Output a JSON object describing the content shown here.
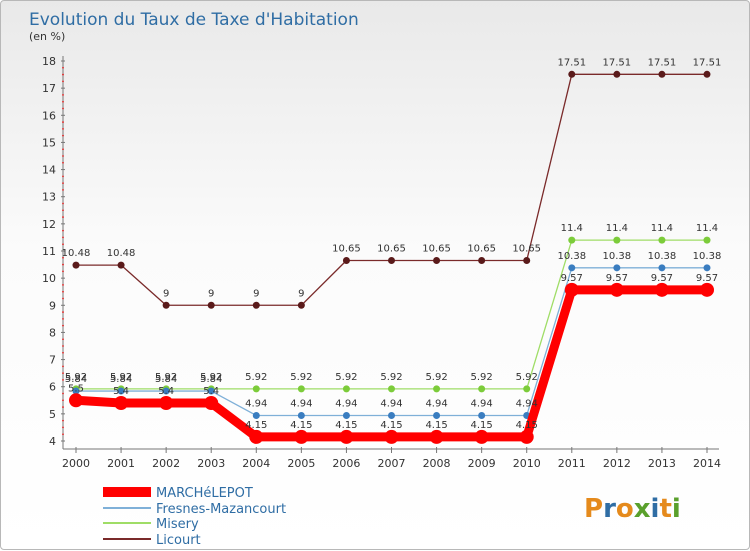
{
  "chart_data": {
    "type": "line",
    "title": "Evolution du Taux de Taxe d'Habitation",
    "subtitle": "(en %)",
    "x": [
      "2000",
      "2001",
      "2002",
      "2003",
      "2004",
      "2005",
      "2006",
      "2007",
      "2008",
      "2009",
      "2010",
      "2011",
      "2012",
      "2013",
      "2014"
    ],
    "ylim": [
      4,
      18
    ],
    "yticks": [
      4,
      5,
      6,
      7,
      8,
      9,
      10,
      11,
      12,
      13,
      14,
      15,
      16,
      17,
      18
    ],
    "grid": false,
    "legend_position": "bottom-left",
    "series": [
      {
        "name": "MARCHéLEPOT",
        "color": "#ff0000",
        "values": [
          5.5,
          5.4,
          5.4,
          5.4,
          4.15,
          4.15,
          4.15,
          4.15,
          4.15,
          4.15,
          4.15,
          9.57,
          9.57,
          9.57,
          9.57
        ]
      },
      {
        "name": "Fresnes-Mazancourt",
        "color": "#5b9bd5",
        "values": [
          5.84,
          5.84,
          5.84,
          5.84,
          4.94,
          4.94,
          4.94,
          4.94,
          4.94,
          4.94,
          4.94,
          10.38,
          10.38,
          10.38,
          10.38
        ]
      },
      {
        "name": "Misery",
        "color": "#99dd55",
        "values": [
          5.92,
          5.92,
          5.92,
          5.92,
          5.92,
          5.92,
          5.92,
          5.92,
          5.92,
          5.92,
          5.92,
          11.4,
          11.4,
          11.4,
          11.4
        ]
      },
      {
        "name": "Licourt",
        "color": "#7a2a2a",
        "values": [
          10.48,
          10.48,
          9,
          9,
          9,
          9,
          10.65,
          10.65,
          10.65,
          10.65,
          10.65,
          17.51,
          17.51,
          17.51,
          17.51
        ]
      }
    ],
    "data_labels": {
      "MARCHéLEPOT": [
        "5.5",
        "5.4",
        "5.4",
        "5.4",
        "4.15",
        "4.15",
        "4.15",
        "4.15",
        "4.15",
        "4.15",
        "4.15",
        "9.57",
        "9.57",
        "9.57",
        "9.57"
      ],
      "Fresnes-Mazancourt": [
        "5.84",
        "5.84",
        "5.84",
        "5.84",
        "4.94",
        "4.94",
        "4.94",
        "4.94",
        "4.94",
        "4.94",
        "4.94",
        "10.38",
        "10.38",
        "10.38",
        "10.38"
      ],
      "Misery": [
        "5.92",
        "5.92",
        "5.92",
        "5.92",
        "5.92",
        "5.92",
        "5.92",
        "5.92",
        "5.92",
        "5.92",
        "5.92",
        "11.4",
        "11.4",
        "11.4",
        "11.4"
      ],
      "Licourt": [
        "10.48",
        "10.48",
        "9",
        "9",
        "9",
        "9",
        "10.65",
        "10.65",
        "10.65",
        "10.65",
        "10.65",
        "17.51",
        "17.51",
        "17.51",
        "17.51"
      ]
    }
  },
  "brand": {
    "text": "Proxiti"
  }
}
